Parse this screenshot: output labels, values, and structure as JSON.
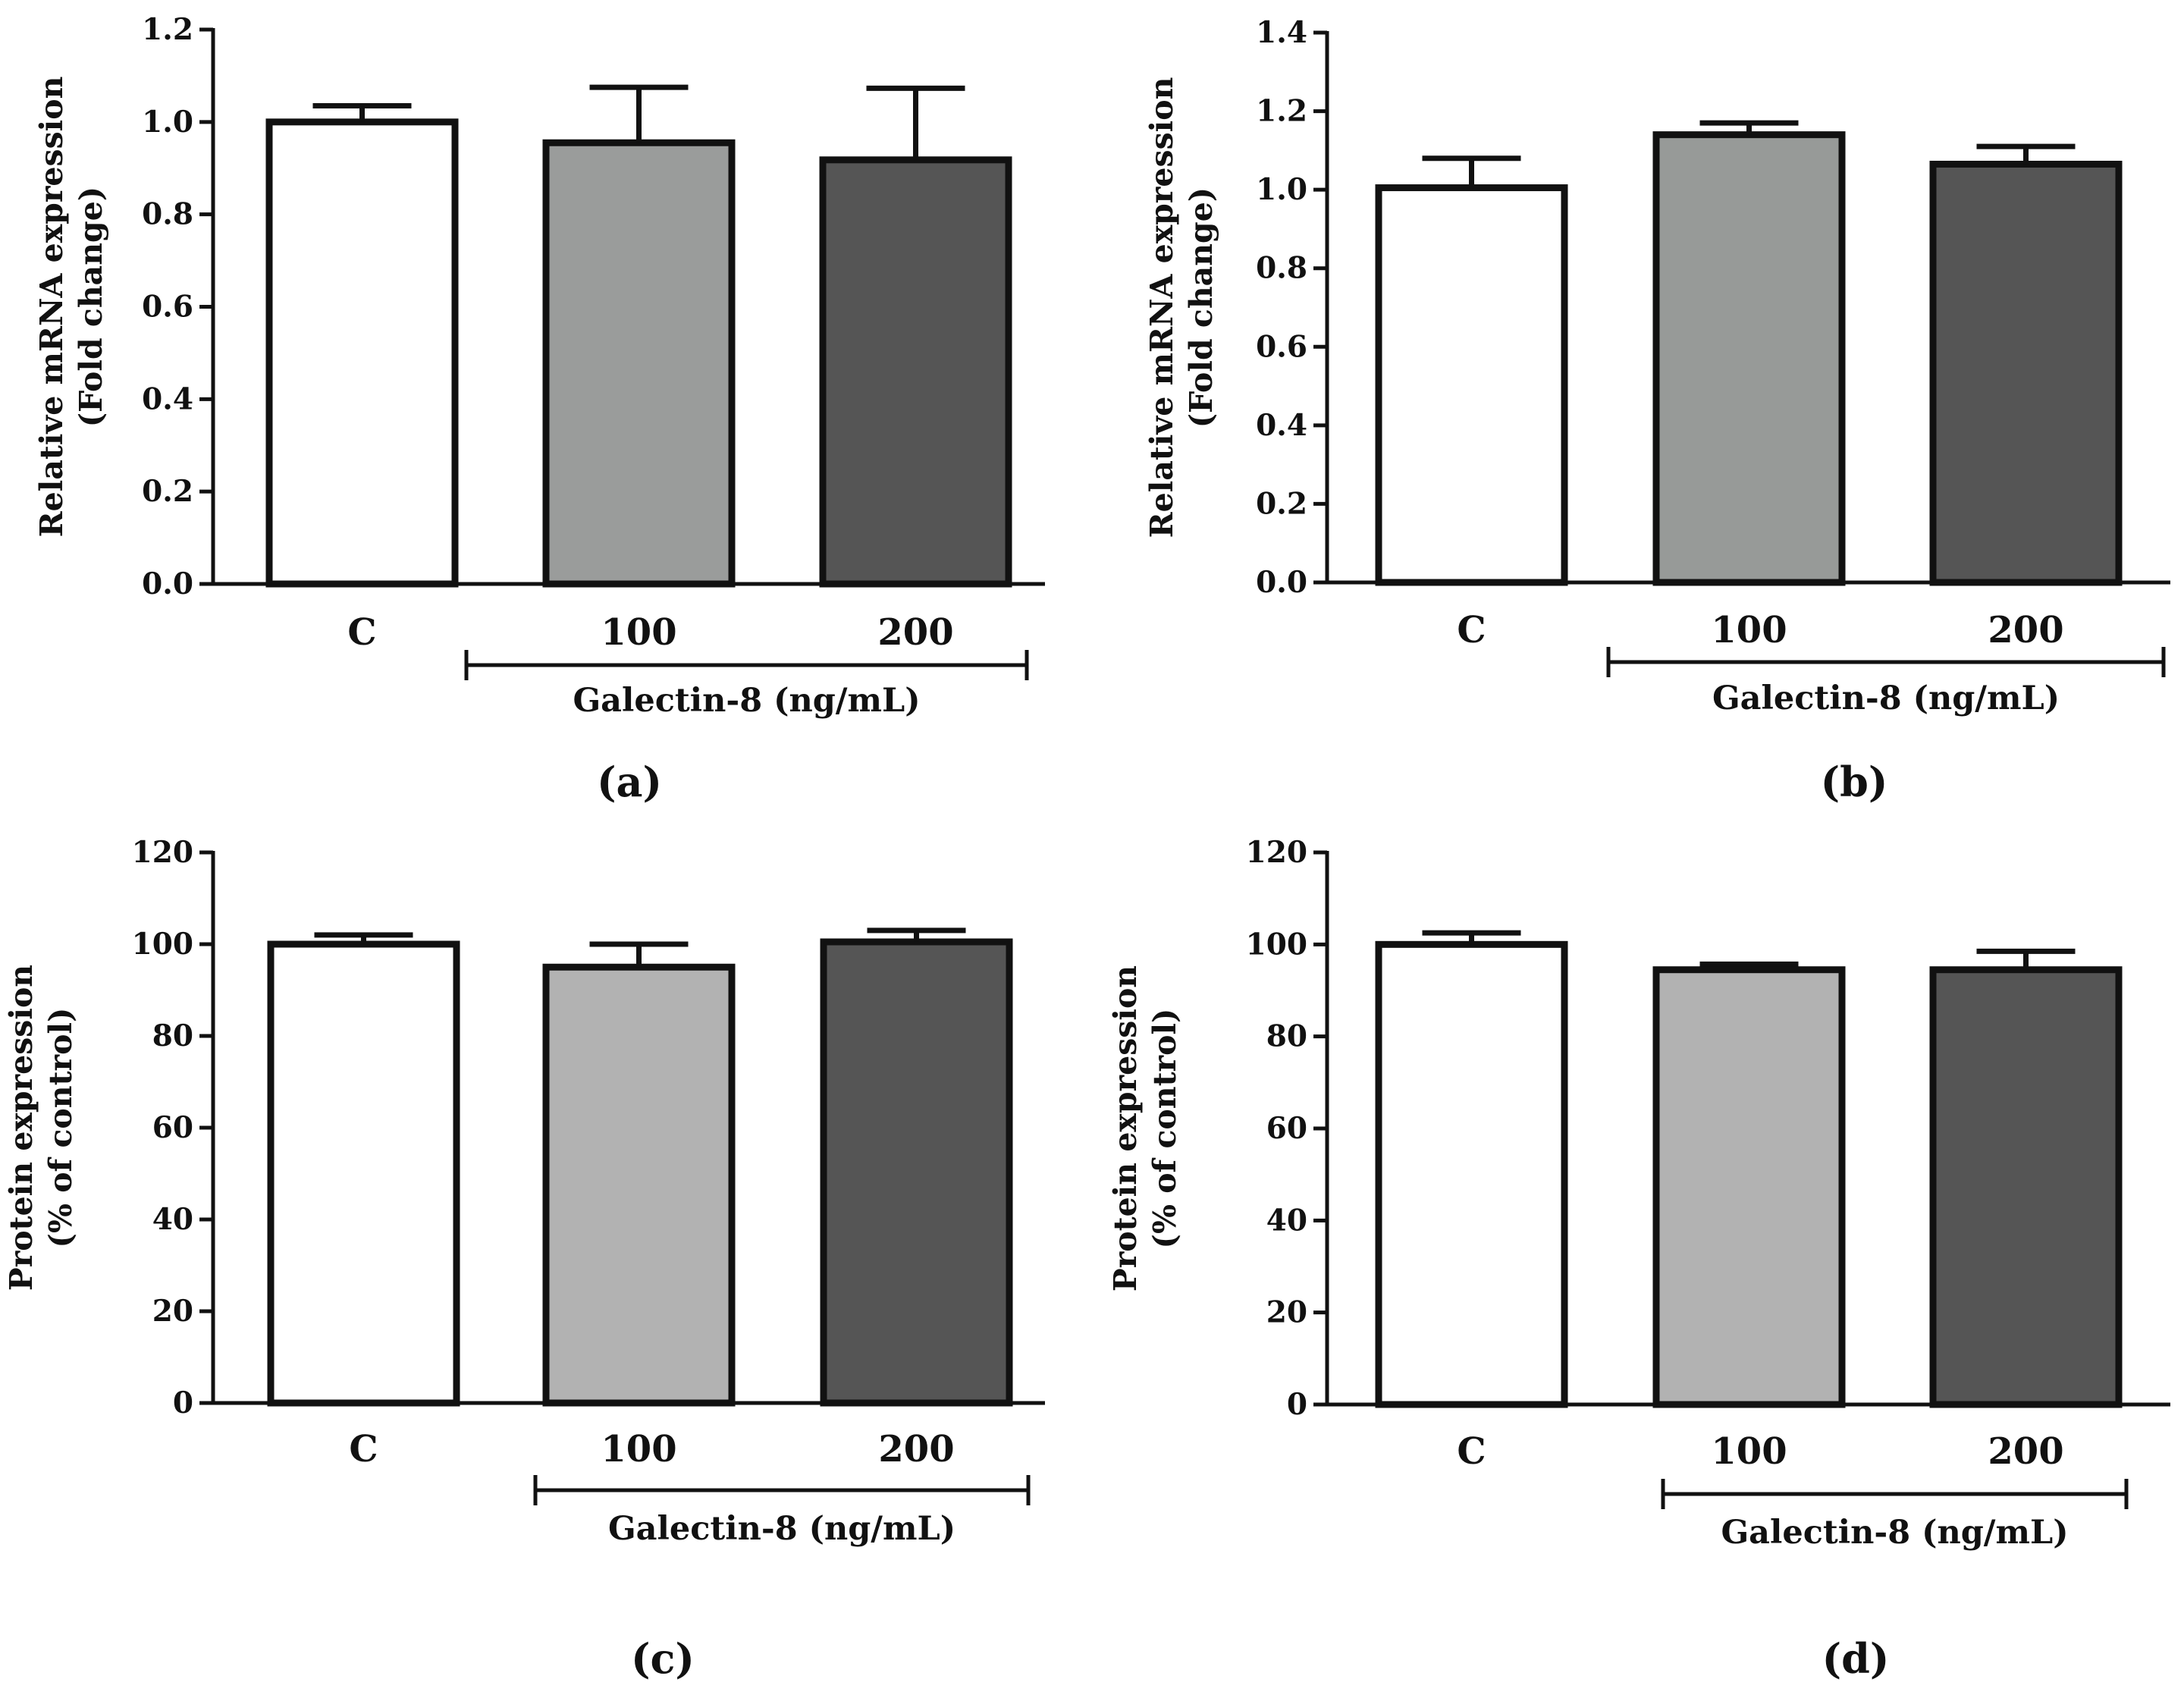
{
  "figure": {
    "group_label": "Galectin-8",
    "group_unit": "(ng/mL)",
    "axis_color": "#111111"
  },
  "chart_data": [
    {
      "panel": "(a)",
      "type": "bar",
      "categories": [
        "C",
        "100",
        "200"
      ],
      "values": [
        1.0,
        0.955,
        0.918
      ],
      "errors": [
        0.035,
        0.12,
        0.155
      ],
      "colors": [
        "#ffffff",
        "#9a9c9b",
        "#555555"
      ],
      "ylabel_line1": "Relative mRNA expression",
      "ylabel_line2": "(Fold change)",
      "ylim": [
        0,
        1.2
      ],
      "yticks": [
        "0.0",
        "0.2",
        "0.4",
        "0.6",
        "0.8",
        "1.0",
        "1.2"
      ],
      "grid": false,
      "group_bar": "spans 100 and 200"
    },
    {
      "panel": "(b)",
      "type": "bar",
      "categories": [
        "C",
        "100",
        "200"
      ],
      "values": [
        1.005,
        1.14,
        1.065
      ],
      "errors": [
        0.075,
        0.03,
        0.045
      ],
      "colors": [
        "#ffffff",
        "#979a98",
        "#555555"
      ],
      "ylabel_line1": "Relative mRNA expression",
      "ylabel_line2": "(Fold change)",
      "ylim": [
        0,
        1.4
      ],
      "yticks": [
        "0.0",
        "0.2",
        "0.4",
        "0.6",
        "0.8",
        "1.0",
        "1.2",
        "1.4"
      ],
      "grid": false,
      "group_bar": "spans 100 and 200"
    },
    {
      "panel": "(c)",
      "type": "bar",
      "categories": [
        "C",
        "100",
        "200"
      ],
      "values": [
        100,
        95,
        100.5
      ],
      "errors": [
        2,
        5,
        2.5
      ],
      "colors": [
        "#ffffff",
        "#b2b2b2",
        "#555555"
      ],
      "ylabel_line1": "Protein expression",
      "ylabel_line2": "(% of control)",
      "ylim": [
        0,
        120
      ],
      "yticks": [
        "0",
        "20",
        "40",
        "60",
        "80",
        "100",
        "120"
      ],
      "grid": false,
      "group_bar": "spans 100 and 200"
    },
    {
      "panel": "(d)",
      "type": "bar",
      "categories": [
        "C",
        "100",
        "200"
      ],
      "values": [
        100,
        94.5,
        94.5
      ],
      "errors": [
        2.5,
        1.2,
        4
      ],
      "colors": [
        "#ffffff",
        "#b2b2b2",
        "#555555"
      ],
      "ylabel_line1": "Protein expression",
      "ylabel_line2": "(% of control)",
      "ylim": [
        0,
        120
      ],
      "yticks": [
        "0",
        "20",
        "40",
        "60",
        "80",
        "100",
        "120"
      ],
      "grid": false,
      "group_bar": "spans 100 and 200"
    }
  ]
}
